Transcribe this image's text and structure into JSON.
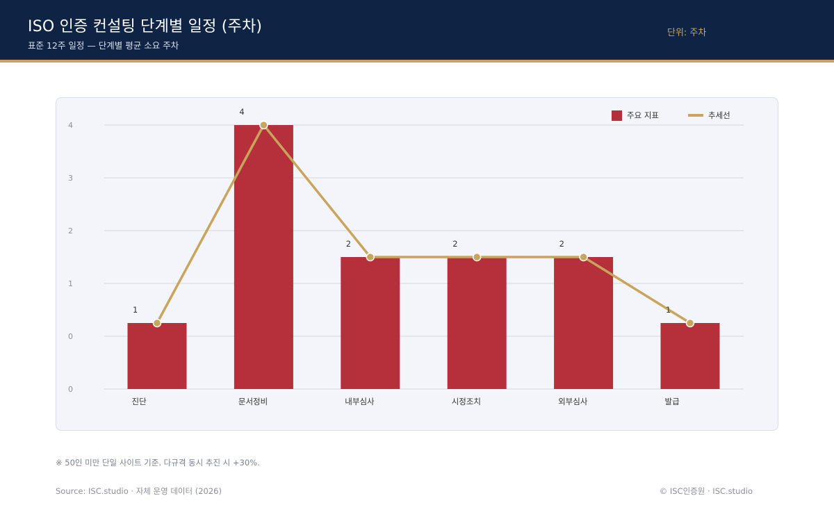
{
  "header": {
    "title": "ISO 인증 컨설팅 단계별 일정 (주차)",
    "subtitle": "표준 12주 일정 — 단계별 평균 소요 주차",
    "unit": "단위: 주차"
  },
  "colors": {
    "header_bg": "#0f2444",
    "accent_gold": "#c9a45c",
    "bar": "#b5303a"
  },
  "chart_data": {
    "type": "bar",
    "categories": [
      "진단",
      "문서정비",
      "내부심사",
      "시정조치",
      "외부심사",
      "발급"
    ],
    "series": [
      {
        "name": "주요 지표",
        "type": "bar",
        "values": [
          1,
          4,
          2,
          2,
          2,
          1
        ]
      },
      {
        "name": "추세선",
        "type": "line",
        "values": [
          1,
          4,
          2,
          2,
          2,
          1
        ]
      }
    ],
    "data_labels": [
      "1",
      "4",
      "2",
      "2",
      "2",
      "1"
    ],
    "y_tick_labels": [
      "0",
      "0",
      "1",
      "2",
      "3",
      "4"
    ],
    "legend_position": "top-right",
    "grid": true
  },
  "footnote": "※ 50인 미만 단일 사이트 기준. 다규격 동시 추진 시 +30%.",
  "source": "Source: ISC.studio · 자체 운영 데이터 (2026)",
  "copyright": "© ISC인증원 · ISC.studio"
}
